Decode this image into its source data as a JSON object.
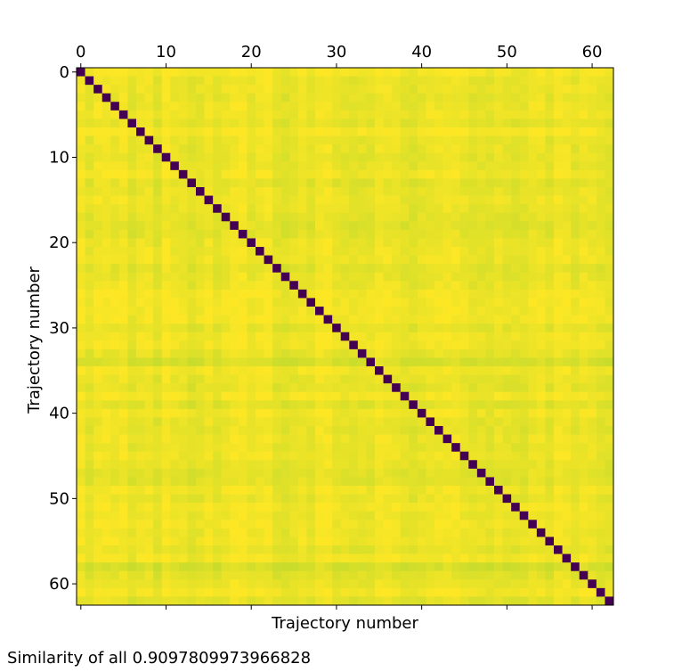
{
  "chart_data": {
    "type": "heatmap",
    "title": "",
    "xlabel": "Trajectory number",
    "ylabel": "Trajectory number",
    "n": 63,
    "x_ticks": [
      0,
      10,
      20,
      30,
      40,
      50,
      60
    ],
    "y_ticks": [
      0,
      10,
      20,
      30,
      40,
      50,
      60
    ],
    "x_tick_position": "top",
    "colormap": "viridis",
    "value_range": [
      0,
      1
    ],
    "diagonal_value": 0,
    "off_diagonal_typical_range": [
      0.85,
      0.97
    ],
    "grid": false,
    "colors": {
      "low": "#440154",
      "mid": "#c8dc2c",
      "high": "#fde725"
    }
  },
  "caption": {
    "text": "Similarity of all 0.9097809973966828"
  }
}
